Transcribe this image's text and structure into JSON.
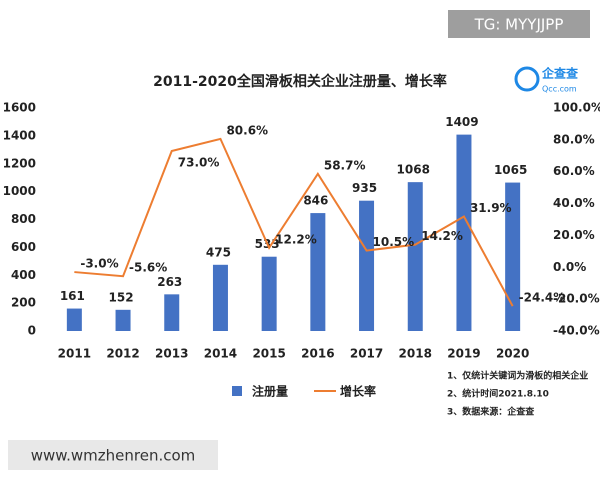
{
  "chart_data": {
    "type": "bar",
    "title": "2011-2020全国滑板相关企业注册量、增长率",
    "categories": [
      "2011",
      "2012",
      "2013",
      "2014",
      "2015",
      "2016",
      "2017",
      "2018",
      "2019",
      "2020"
    ],
    "series": [
      {
        "name": "注册量",
        "type": "bar",
        "color": "#4472c4",
        "values": [
          161,
          152,
          263,
          475,
          533,
          846,
          935,
          1068,
          1409,
          1065
        ]
      },
      {
        "name": "增长率",
        "type": "line",
        "axis": "y2",
        "color": "#ed7d31",
        "values": [
          -3.0,
          -5.6,
          73.0,
          80.6,
          12.2,
          58.7,
          10.5,
          14.2,
          31.9,
          -24.4
        ],
        "value_labels": [
          "-3.0%",
          "-5.6%",
          "73.0%",
          "80.6%",
          "12.2%",
          "58.7%",
          "10.5%",
          "14.2%",
          "31.9%",
          "-24.4%"
        ]
      }
    ],
    "ylim": [
      0,
      1600
    ],
    "yticks": [
      0,
      200,
      400,
      600,
      800,
      1000,
      1200,
      1400,
      1600
    ],
    "y2lim": [
      -40,
      100
    ],
    "y2ticks": [
      {
        "value": -40,
        "label": "-40.0%"
      },
      {
        "value": -20,
        "label": "-20.0%"
      },
      {
        "value": 0,
        "label": "0.0%"
      },
      {
        "value": 20,
        "label": "20.0%"
      },
      {
        "value": 40,
        "label": "40.0%"
      },
      {
        "value": 60,
        "label": "60.0%"
      },
      {
        "value": 80,
        "label": "80.0%"
      },
      {
        "value": 100,
        "label": "100.0%"
      }
    ],
    "grid": false,
    "legend": "bottom"
  },
  "notes": [
    "1、仅统计关键词为滑板的相关企业",
    "2、统计时间2021.8.10",
    "3、数据来源：企查查"
  ],
  "logo": {
    "name": "企查查",
    "domain": "Qcc.com"
  },
  "watermarks": [
    "TG: MYYJJPP",
    "www.wmzhenren.com"
  ]
}
